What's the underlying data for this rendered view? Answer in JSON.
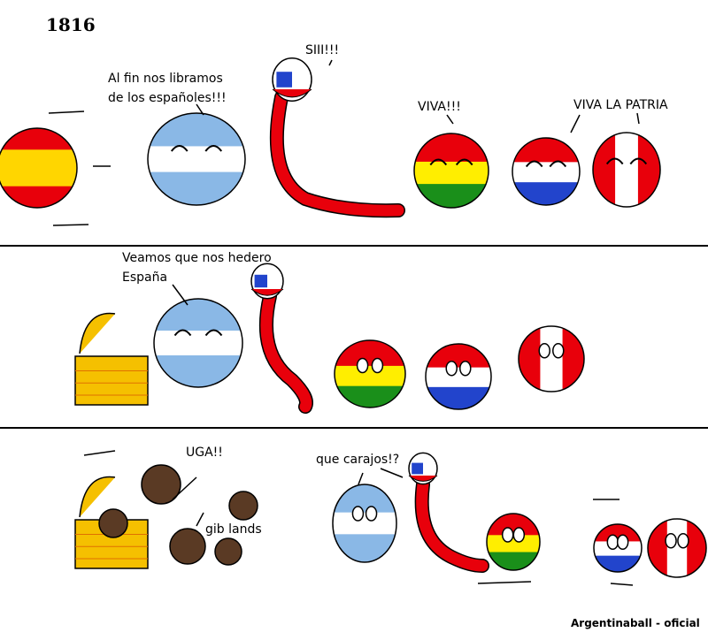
{
  "title": "1816",
  "panels": [
    {
      "speech": [
        {
          "lines": [
            "Al fin nos libramos",
            "de los españoles!!!"
          ]
        },
        {
          "lines": [
            "SIII!!!"
          ]
        },
        {
          "lines": [
            "VIVA!!!"
          ]
        },
        {
          "lines": [
            "VIVA LA PATRIA"
          ]
        }
      ]
    },
    {
      "speech": [
        {
          "lines": [
            "Veamos que nos hedero",
            "España"
          ]
        }
      ]
    },
    {
      "speech": [
        {
          "lines": [
            "UGA!!"
          ]
        },
        {
          "lines": [
            "gib lands"
          ]
        },
        {
          "lines": [
            "que carajos!?"
          ]
        }
      ]
    }
  ],
  "credit": "Argentinaball - oficial"
}
